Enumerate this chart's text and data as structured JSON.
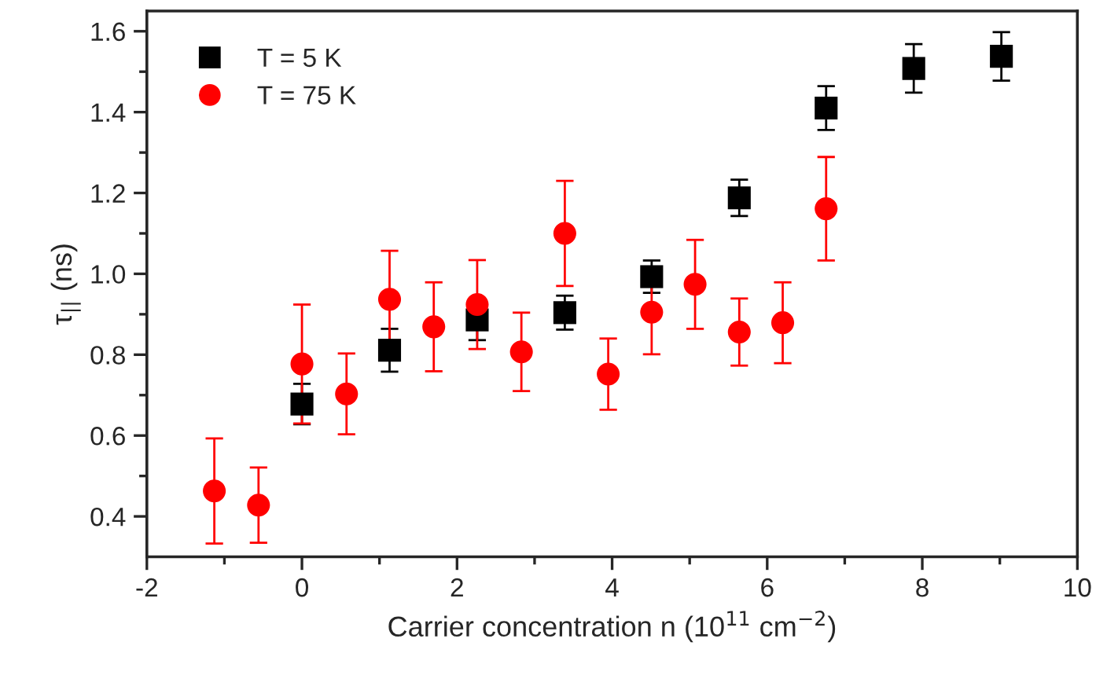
{
  "chart_data": {
    "type": "scatter",
    "xlabel": "Carrier concentration n (10$^{11}$ cm$^{−2}$)",
    "ylabel": "τ$_{||}$ (ns)",
    "xlim": [
      -2,
      10
    ],
    "xticks": [
      -2,
      0,
      2,
      4,
      6,
      8,
      10
    ],
    "ylim": [
      0.3,
      1.65
    ],
    "yticks": [
      0.4,
      0.6,
      0.8,
      {
        "value": 1,
        "label": "1.0"
      },
      1.2,
      1.4,
      1.6
    ],
    "legend": "top left",
    "grid": false,
    "series": [
      {
        "name": "T = 5 K",
        "color": "#000000",
        "marker": "square",
        "x": [
          0,
          1.13,
          2.26,
          3.39,
          4.51,
          5.64,
          6.76,
          7.89,
          9.02
        ],
        "values": [
          0.678,
          0.811,
          0.886,
          0.904,
          0.993,
          1.188,
          1.41,
          1.508,
          1.538
        ],
        "errors": [
          0.05,
          0.053,
          0.05,
          0.042,
          0.04,
          0.045,
          0.054,
          0.06,
          0.06
        ]
      },
      {
        "name": "T = 75 K",
        "color": "#ff0000",
        "marker": "circle",
        "x": [
          -1.13,
          -0.56,
          0,
          0.575,
          1.13,
          1.7,
          2.26,
          2.83,
          3.39,
          3.95,
          4.51,
          5.07,
          5.64,
          6.2,
          6.76
        ],
        "values": [
          0.463,
          0.428,
          0.777,
          0.703,
          0.937,
          0.869,
          0.924,
          0.807,
          1.1,
          0.752,
          0.905,
          0.974,
          0.856,
          0.879,
          1.161
        ],
        "errors": [
          0.13,
          0.093,
          0.147,
          0.1,
          0.12,
          0.11,
          0.11,
          0.097,
          0.13,
          0.088,
          0.104,
          0.11,
          0.083,
          0.1,
          0.128
        ]
      }
    ]
  }
}
